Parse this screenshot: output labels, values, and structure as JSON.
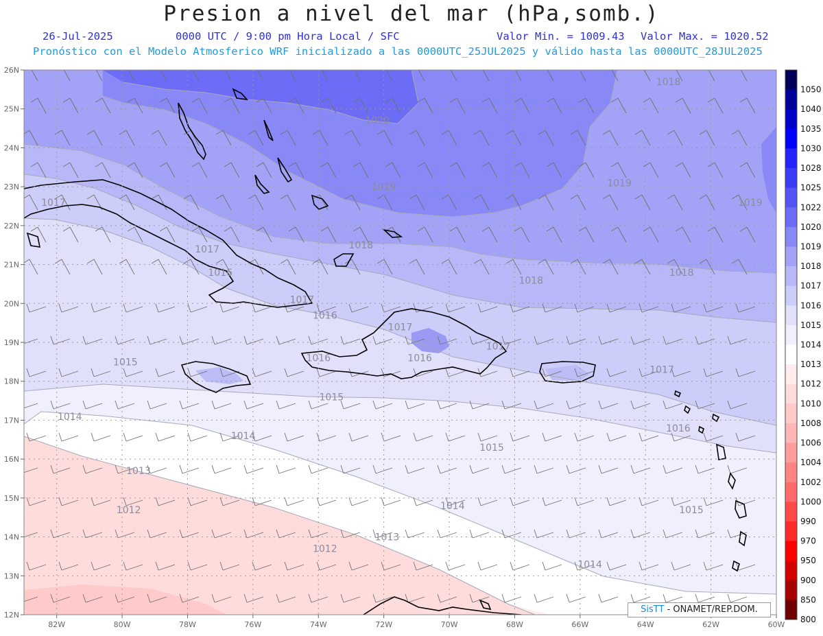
{
  "header": {
    "title": "Presion a nivel del mar (hPa,somb.)",
    "date": "26-Jul-2025",
    "time_info": "0000 UTC / 9:00 pm Hora Local / SFC",
    "min_label": "Valor Min. = 1009.43",
    "max_label": "Valor Max. = 1020.52",
    "model_info": "Pronóstico con el Modelo Atmosferico WRF inicializado a las 0000UTC_25JUL2025 y válido hasta las  0000UTC_28JUL2025"
  },
  "map": {
    "lon_range": [
      -83,
      -60
    ],
    "lat_range": [
      12,
      26
    ],
    "lon_ticks": [
      "82W",
      "80W",
      "78W",
      "76W",
      "74W",
      "72W",
      "70W",
      "68W",
      "66W",
      "64W",
      "62W",
      "60W"
    ],
    "lat_ticks": [
      "12N",
      "13N",
      "14N",
      "15N",
      "16N",
      "17N",
      "18N",
      "19N",
      "20N",
      "21N",
      "22N",
      "23N",
      "24N",
      "25N",
      "26N"
    ],
    "isobar_labels": [
      {
        "text": "1018",
        "lon": -63.3,
        "lat": 25.7
      },
      {
        "text": "1020",
        "lon": -72.2,
        "lat": 24.7
      },
      {
        "text": "1019",
        "lon": -72.0,
        "lat": 23.0
      },
      {
        "text": "1019",
        "lon": -64.8,
        "lat": 23.1
      },
      {
        "text": "1019",
        "lon": -60.8,
        "lat": 22.6
      },
      {
        "text": "1017",
        "lon": -82.1,
        "lat": 22.6
      },
      {
        "text": "1017",
        "lon": -77.4,
        "lat": 21.4
      },
      {
        "text": "1018",
        "lon": -72.7,
        "lat": 21.5
      },
      {
        "text": "1016",
        "lon": -77.0,
        "lat": 20.8
      },
      {
        "text": "1018",
        "lon": -67.5,
        "lat": 20.6
      },
      {
        "text": "1018",
        "lon": -62.9,
        "lat": 20.8
      },
      {
        "text": "1017",
        "lon": -74.5,
        "lat": 20.1
      },
      {
        "text": "1016",
        "lon": -73.8,
        "lat": 19.7
      },
      {
        "text": "1017",
        "lon": -71.5,
        "lat": 19.4
      },
      {
        "text": "1017",
        "lon": -68.5,
        "lat": 18.9
      },
      {
        "text": "1015",
        "lon": -79.9,
        "lat": 18.5
      },
      {
        "text": "1016",
        "lon": -74.0,
        "lat": 18.6
      },
      {
        "text": "1016",
        "lon": -70.9,
        "lat": 18.6
      },
      {
        "text": "1017",
        "lon": -63.5,
        "lat": 18.3
      },
      {
        "text": "1015",
        "lon": -73.6,
        "lat": 17.6
      },
      {
        "text": "1014",
        "lon": -81.6,
        "lat": 17.1
      },
      {
        "text": "1014",
        "lon": -76.3,
        "lat": 16.6
      },
      {
        "text": "1016",
        "lon": -63.0,
        "lat": 16.8
      },
      {
        "text": "1015",
        "lon": -68.7,
        "lat": 16.3
      },
      {
        "text": "1013",
        "lon": -79.5,
        "lat": 15.7
      },
      {
        "text": "1012",
        "lon": -79.8,
        "lat": 14.7
      },
      {
        "text": "1014",
        "lon": -69.9,
        "lat": 14.8
      },
      {
        "text": "1015",
        "lon": -62.6,
        "lat": 14.7
      },
      {
        "text": "1013",
        "lon": -71.9,
        "lat": 14.0
      },
      {
        "text": "1012",
        "lon": -73.8,
        "lat": 13.7
      },
      {
        "text": "1014",
        "lon": -65.7,
        "lat": 13.3
      }
    ]
  },
  "legend": [
    {
      "label": "1050",
      "color": "#00005a"
    },
    {
      "label": "1040",
      "color": "#000098"
    },
    {
      "label": "1035",
      "color": "#0000c8"
    },
    {
      "label": "1030",
      "color": "#0000ff"
    },
    {
      "label": "1028",
      "color": "#2424ff"
    },
    {
      "label": "1025",
      "color": "#3c3cf8"
    },
    {
      "label": "1022",
      "color": "#5454f4"
    },
    {
      "label": "1020",
      "color": "#6c6cf6"
    },
    {
      "label": "1019",
      "color": "#8888f6"
    },
    {
      "label": "1018",
      "color": "#a2a2f6"
    },
    {
      "label": "1017",
      "color": "#b8b8f8"
    },
    {
      "label": "1016",
      "color": "#cdcdf9"
    },
    {
      "label": "1015",
      "color": "#e0e0fb"
    },
    {
      "label": "1014",
      "color": "#efeffd"
    },
    {
      "label": "1013",
      "color": "#ffffff"
    },
    {
      "label": "1012",
      "color": "#ffecec"
    },
    {
      "label": "1010",
      "color": "#ffdcdc"
    },
    {
      "label": "1008",
      "color": "#ffcaca"
    },
    {
      "label": "1006",
      "color": "#ffb6b6"
    },
    {
      "label": "1004",
      "color": "#ff9c9c"
    },
    {
      "label": "1002",
      "color": "#ff8484"
    },
    {
      "label": "1000",
      "color": "#ff6a6a"
    },
    {
      "label": "990",
      "color": "#ff4a4a"
    },
    {
      "label": "970",
      "color": "#ff2a2a"
    },
    {
      "label": "950",
      "color": "#ff0000"
    },
    {
      "label": "900",
      "color": "#d40000"
    },
    {
      "label": "850",
      "color": "#a60000"
    },
    {
      "label": "800",
      "color": "#6e0000"
    }
  ],
  "credit": {
    "brand": "SisTT",
    "text": " - ONAMET/REP.DOM."
  }
}
